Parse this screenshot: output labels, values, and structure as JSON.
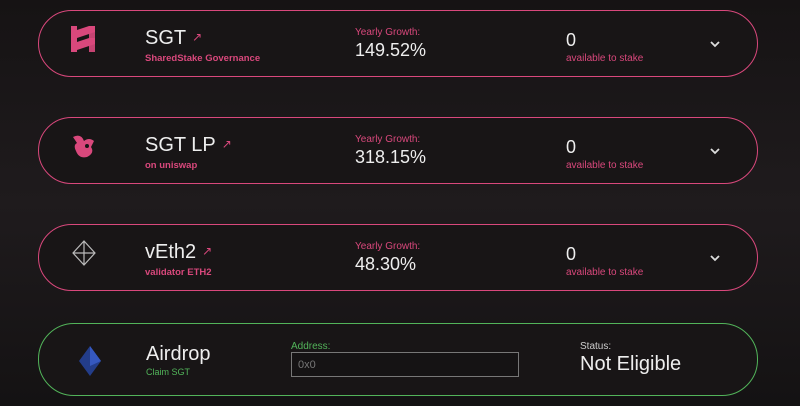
{
  "pools": [
    {
      "name": "SGT",
      "subtitle": "SharedStake Governance",
      "growth_label": "Yearly Growth:",
      "growth": "149.52%",
      "available": "0",
      "available_label": "available to stake"
    },
    {
      "name": "SGT LP",
      "subtitle": "on uniswap",
      "growth_label": "Yearly Growth:",
      "growth": "318.15%",
      "available": "0",
      "available_label": "available to stake"
    },
    {
      "name": "vEth2",
      "subtitle": "validator ETH2",
      "growth_label": "Yearly Growth:",
      "growth": "48.30%",
      "available": "0",
      "available_label": "available to stake"
    }
  ],
  "airdrop": {
    "title": "Airdrop",
    "subtitle": "Claim SGT",
    "address_label": "Address:",
    "address_placeholder": "0x0",
    "status_label": "Status:",
    "status": "Not Eligible"
  }
}
